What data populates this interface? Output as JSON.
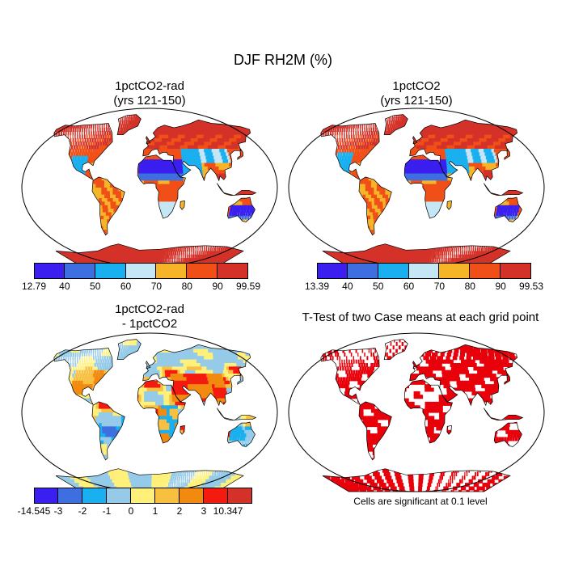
{
  "title": "DJF RH2M (%)",
  "panels": {
    "p1": {
      "title_line1": "1pctCO2-rad",
      "title_line2": "(yrs 121-150)"
    },
    "p2": {
      "title_line1": "1pctCO2",
      "title_line2": "(yrs 121-150)"
    },
    "p3": {
      "title_line1": "1pctCO2-rad",
      "title_line2": "- 1pctCO2"
    },
    "p4": {
      "title_line1": "T-Test of two Case means at each grid point"
    }
  },
  "note": "Cells are significant at 0.1 level",
  "colorbars": {
    "cb1": {
      "colors": [
        "#3a1ff0",
        "#3d6fe0",
        "#1ab0f0",
        "#c4e6f5",
        "#f6b428",
        "#f05018",
        "#d43228"
      ],
      "labels": [
        "12.79",
        "40",
        "50",
        "60",
        "70",
        "80",
        "90",
        "99.59"
      ]
    },
    "cb2": {
      "colors": [
        "#3a1ff0",
        "#3d6fe0",
        "#1ab0f0",
        "#c4e6f5",
        "#f6b428",
        "#f05018",
        "#d43228"
      ],
      "labels": [
        "13.39",
        "40",
        "50",
        "60",
        "70",
        "80",
        "90",
        "99.53"
      ]
    },
    "cb3": {
      "colors": [
        "#3a1ff0",
        "#3d6fe0",
        "#1ab0f0",
        "#95cbe8",
        "#fff07a",
        "#f8c040",
        "#f28a10",
        "#f51a10",
        "#d43228"
      ],
      "labels": [
        "-14.545",
        "-3",
        "-2",
        "-1",
        "0",
        "1",
        "2",
        "3",
        "10.347"
      ]
    }
  },
  "chart_data": [
    {
      "type": "heatmap",
      "title": "1pctCO2-rad (yrs 121-150)",
      "colorbar_levels": [
        12.79,
        40,
        50,
        60,
        70,
        80,
        90,
        99.59
      ]
    },
    {
      "type": "heatmap",
      "title": "1pctCO2 (yrs 121-150)",
      "colorbar_levels": [
        13.39,
        40,
        50,
        60,
        70,
        80,
        90,
        99.53
      ]
    },
    {
      "type": "heatmap",
      "title": "1pctCO2-rad - 1pctCO2",
      "colorbar_levels": [
        -14.545,
        -3,
        -2,
        -1,
        0,
        1,
        2,
        3,
        10.347
      ]
    },
    {
      "type": "heatmap",
      "title": "T-Test of two Case means at each grid point",
      "colors": {
        "significant": "#e8000a"
      }
    }
  ]
}
